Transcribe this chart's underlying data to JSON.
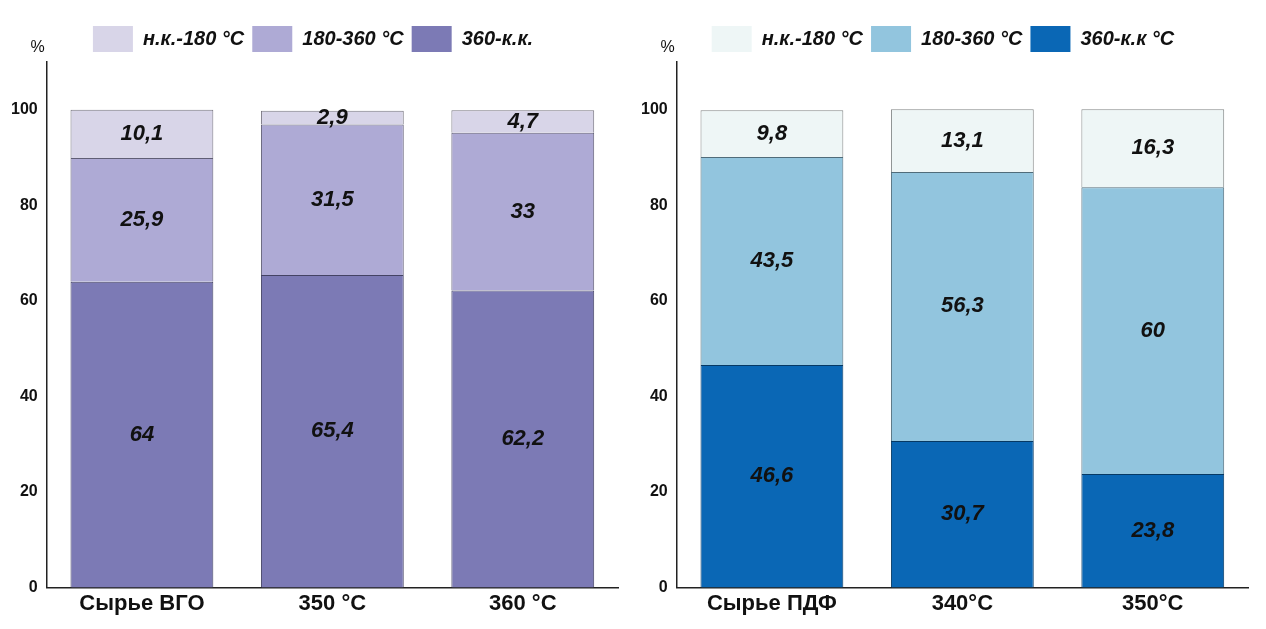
{
  "chart_data": [
    {
      "type": "bar",
      "stacked": true,
      "ylabel": "%",
      "categories": [
        "Сырье ВГО",
        "350 °C",
        "360 °C"
      ],
      "ylim": [
        0,
        110
      ],
      "yticks": [
        0,
        20,
        40,
        60,
        80,
        100
      ],
      "legend": "top",
      "grid": false,
      "series": [
        {
          "name": "360-к.к.",
          "color": "#7c7ab5",
          "values": [
            64,
            65.4,
            62.2
          ],
          "value_labels": [
            "64",
            "65,4",
            "62,2"
          ]
        },
        {
          "name": "180-360 °C",
          "color": "#aeaad5",
          "values": [
            25.9,
            31.5,
            33
          ],
          "value_labels": [
            "25,9",
            "31,5",
            "33"
          ]
        },
        {
          "name": "н.к.-180 °C",
          "color": "#d8d5e8",
          "values": [
            10.1,
            2.9,
            4.7
          ],
          "value_labels": [
            "10,1",
            "2,9",
            "4,7"
          ]
        }
      ]
    },
    {
      "type": "bar",
      "stacked": true,
      "ylabel": "%",
      "categories": [
        "Сырье ПДФ",
        "340°C",
        "350°C"
      ],
      "ylim": [
        0,
        110
      ],
      "yticks": [
        0,
        20,
        40,
        60,
        80,
        100
      ],
      "legend": "top",
      "grid": false,
      "series": [
        {
          "name": "360-к.к °C",
          "color": "#0a67b5",
          "values": [
            46.6,
            30.7,
            23.8
          ],
          "value_labels": [
            "46,6",
            "30,7",
            "23,8"
          ]
        },
        {
          "name": "180-360 °C",
          "color": "#92c5de",
          "values": [
            43.5,
            56.3,
            60
          ],
          "value_labels": [
            "43,5",
            "56,3",
            "60"
          ]
        },
        {
          "name": "н.к.-180 °C",
          "color": "#eef6f6",
          "values": [
            9.8,
            13.1,
            16.3
          ],
          "value_labels": [
            "9,8",
            "13,1",
            "16,3"
          ]
        }
      ]
    }
  ]
}
